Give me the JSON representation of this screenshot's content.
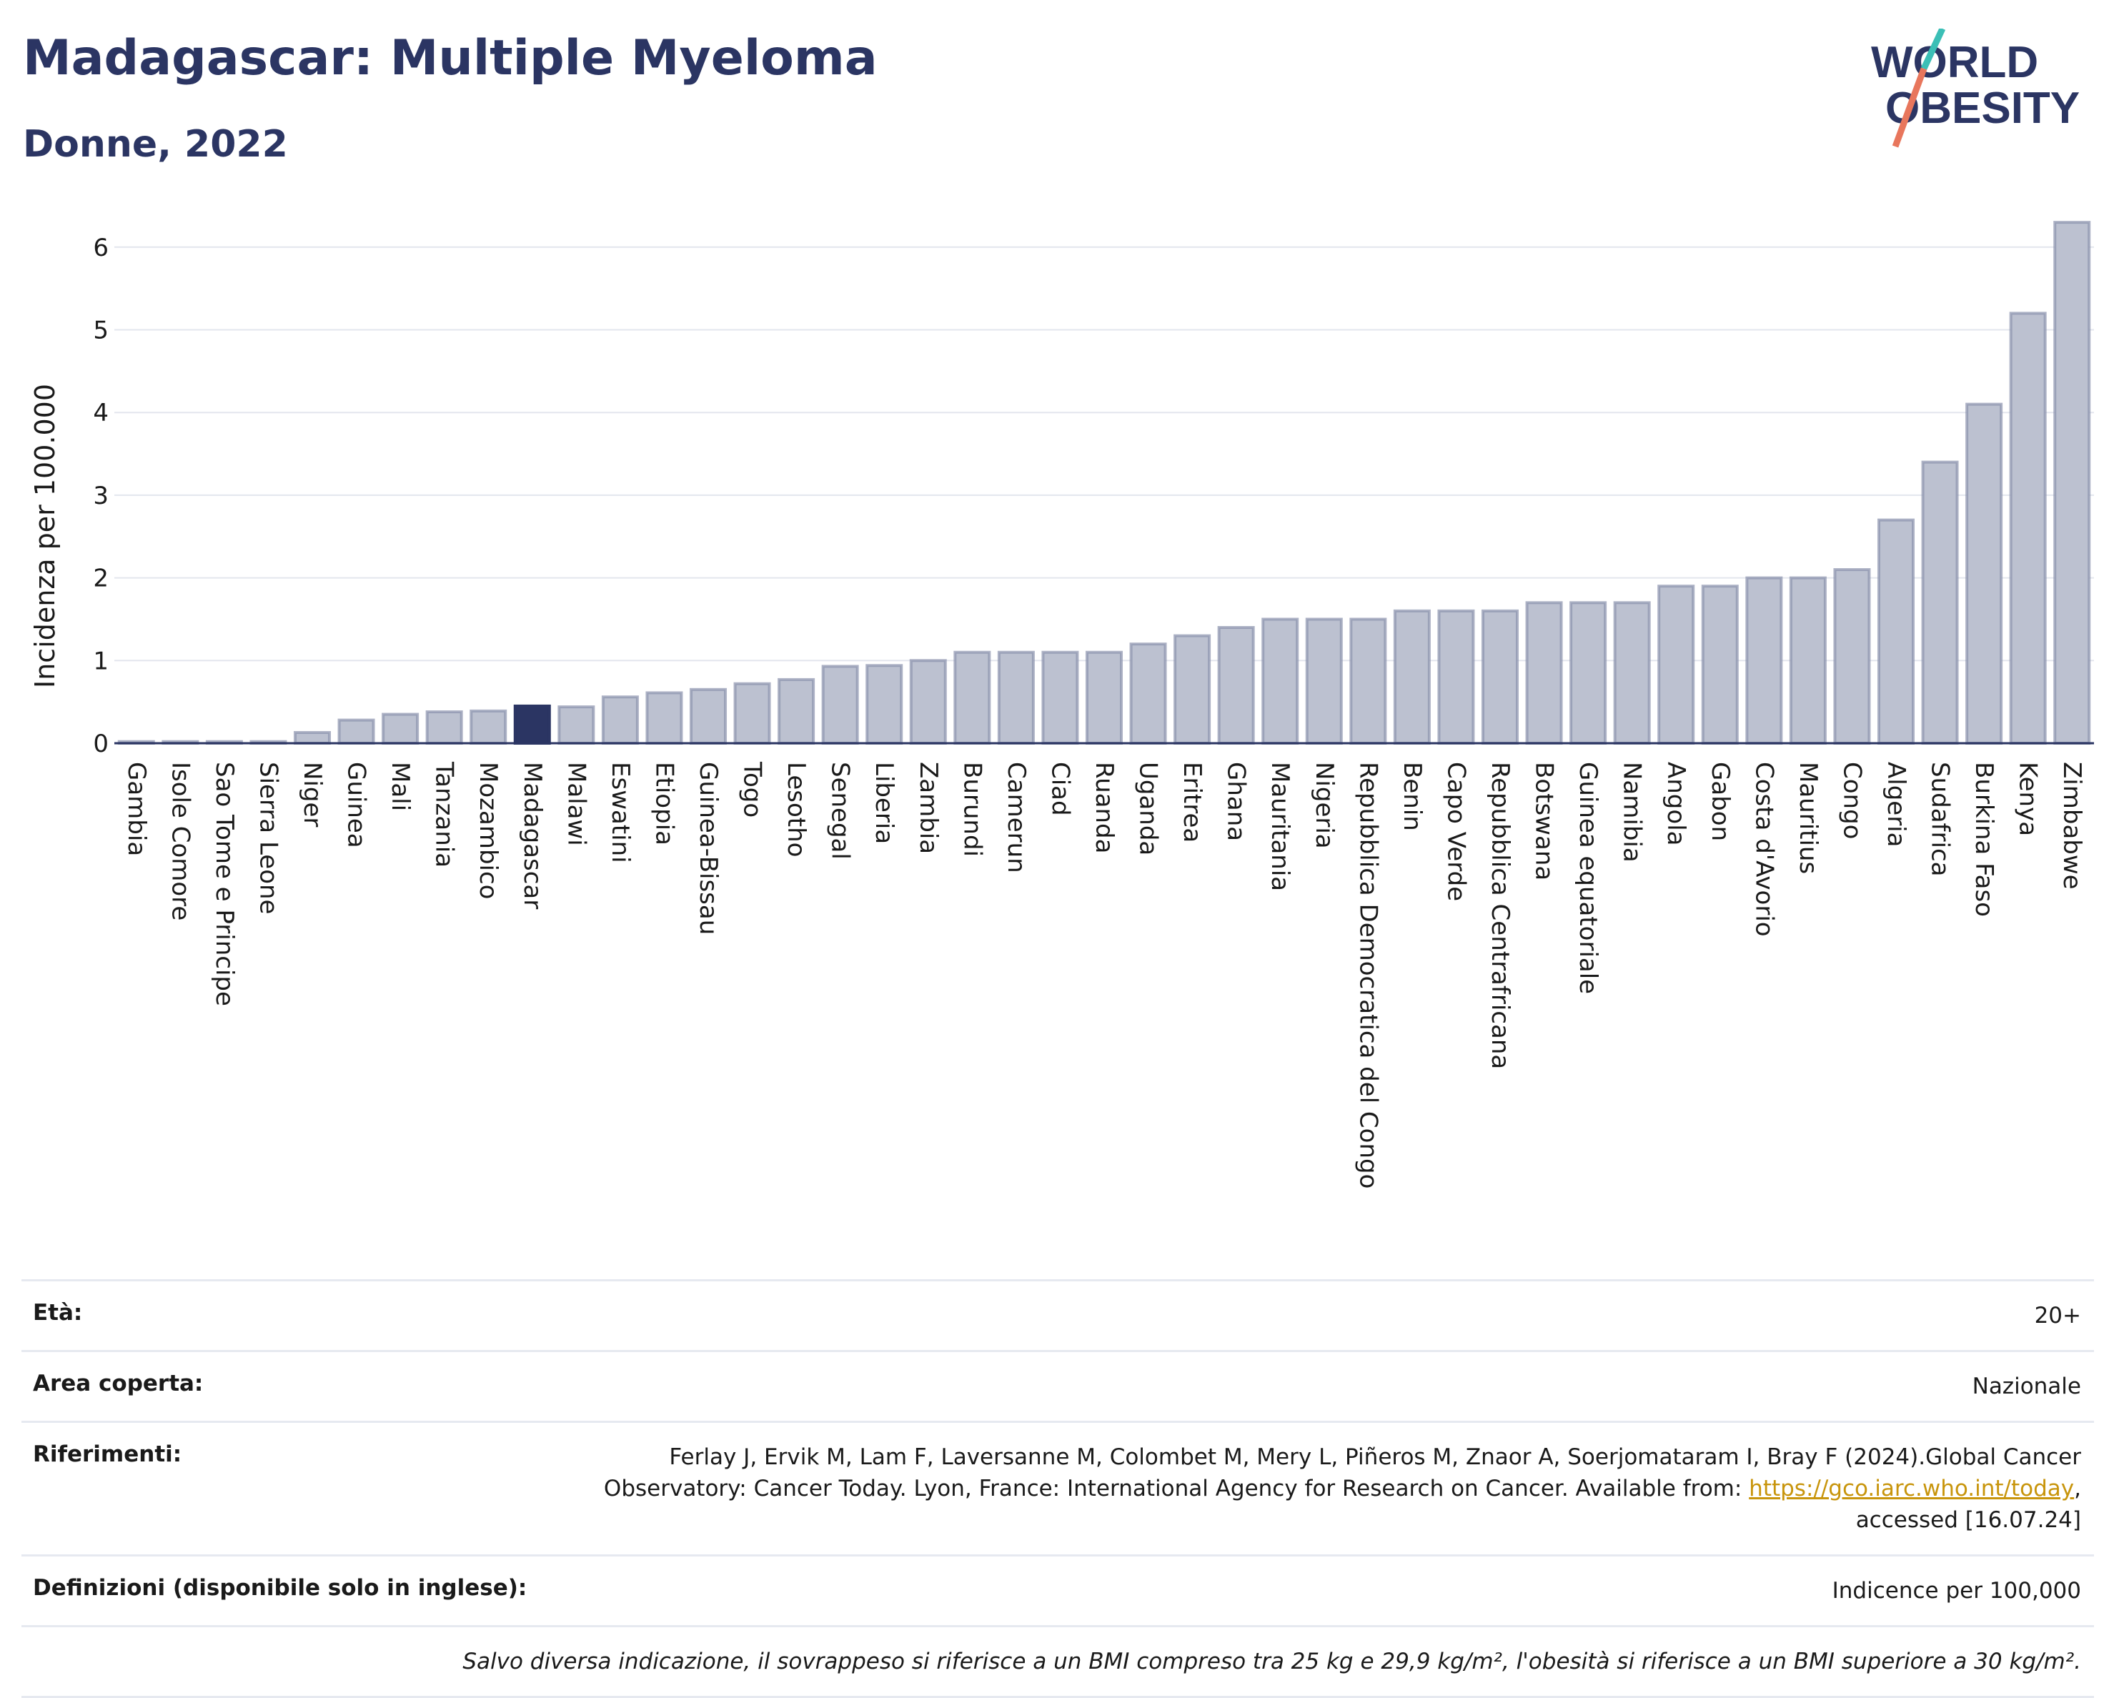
{
  "header": {
    "title": "Madagascar: Multiple Myeloma",
    "subtitle": "Donne, 2022",
    "logo_line1": "WORLD",
    "logo_line2": "OBESITY"
  },
  "colors": {
    "highlight": "#2b3563",
    "bar": "#bcc1d0",
    "bar_border": "#8a91ad",
    "logo_slash_top": "#3bbfb6",
    "logo_slash_bottom": "#e8765c"
  },
  "chart_data": {
    "type": "bar",
    "ylabel": "Incidenza per 100.000",
    "ylim": [
      0,
      6.5
    ],
    "yticks": [
      0,
      1,
      2,
      3,
      4,
      5,
      6
    ],
    "grid": true,
    "highlight_category": "Madagascar",
    "categories": [
      "Gambia",
      "Isole Comore",
      "Sao Tome e Principe",
      "Sierra Leone",
      "Niger",
      "Guinea",
      "Mali",
      "Tanzania",
      "Mozambico",
      "Madagascar",
      "Malawi",
      "Eswatini",
      "Etiopia",
      "Guinea-Bissau",
      "Togo",
      "Lesotho",
      "Senegal",
      "Liberia",
      "Zambia",
      "Burundi",
      "Camerun",
      "Ciad",
      "Ruanda",
      "Uganda",
      "Eritrea",
      "Ghana",
      "Mauritania",
      "Nigeria",
      "Repubblica Democratica del Congo",
      "Benin",
      "Capo Verde",
      "Repubblica Centrafricana",
      "Botswana",
      "Guinea equatoriale",
      "Namibia",
      "Angola",
      "Gabon",
      "Costa d'Avorio",
      "Mauritius",
      "Congo",
      "Algeria",
      "Sudafrica",
      "Burkina Faso",
      "Kenya",
      "Zimbabwe"
    ],
    "values": [
      0.02,
      0.02,
      0.02,
      0.02,
      0.13,
      0.28,
      0.35,
      0.38,
      0.39,
      0.45,
      0.44,
      0.56,
      0.61,
      0.65,
      0.72,
      0.77,
      0.93,
      0.94,
      1.0,
      1.1,
      1.1,
      1.1,
      1.1,
      1.2,
      1.3,
      1.4,
      1.5,
      1.5,
      1.5,
      1.6,
      1.6,
      1.6,
      1.7,
      1.7,
      1.7,
      1.9,
      1.9,
      2.0,
      2.0,
      2.1,
      2.7,
      3.4,
      4.1,
      5.2,
      6.3
    ]
  },
  "info": {
    "age_label": "Età:",
    "age_value": "20+",
    "area_label": "Area coperta:",
    "area_value": "Nazionale",
    "refs_label": "Riferimenti:",
    "refs_text1": "Ferlay J, Ervik M, Lam F, Laversanne M, Colombet M, Mery L, Piñeros M, Znaor A, Soerjomataram I, Bray F (2024).Global Cancer Observatory: Cancer Today. Lyon, France: International Agency for Research on Cancer. Available from: ",
    "refs_link": "https://gco.iarc.who.int/today",
    "refs_text2": ", accessed [16.07.24]",
    "defs_label": "Definizioni (disponibile solo in inglese):",
    "defs_value": "Indicence per 100,000",
    "footnote": "Salvo diversa indicazione, il sovrappeso si riferisce a un BMI compreso tra 25 kg e 29,9 kg/m², l'obesità si riferisce a un BMI superiore a 30 kg/m²."
  }
}
